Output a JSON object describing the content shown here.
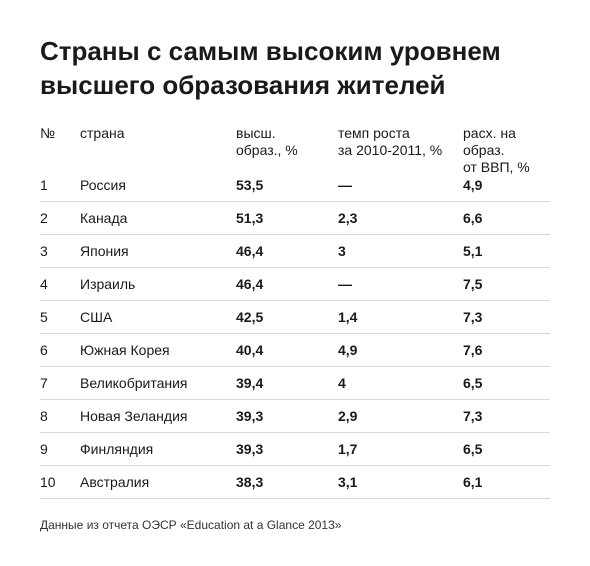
{
  "title": "Страны с самым высоким уровнем высшего образования жителей",
  "headers": {
    "no": "№",
    "country": "страна",
    "higher_ed_l1": "высш.",
    "higher_ed_l2": "образ., %",
    "growth_l1": "темп роста",
    "growth_l2": "за 2010-2011, %",
    "spend_l1": "расх. на образ.",
    "spend_l2": "от ВВП, %"
  },
  "rows": [
    {
      "no": "1",
      "country": "Россия",
      "higher_ed": "53,5",
      "growth": "—",
      "spend": "4,9"
    },
    {
      "no": "2",
      "country": "Канада",
      "higher_ed": "51,3",
      "growth": "2,3",
      "spend": "6,6"
    },
    {
      "no": "3",
      "country": "Япония",
      "higher_ed": "46,4",
      "growth": "3",
      "spend": "5,1"
    },
    {
      "no": "4",
      "country": "Израиль",
      "higher_ed": "46,4",
      "growth": "—",
      "spend": "7,5"
    },
    {
      "no": "5",
      "country": "США",
      "higher_ed": "42,5",
      "growth": "1,4",
      "spend": "7,3"
    },
    {
      "no": "6",
      "country": "Южная Корея",
      "higher_ed": "40,4",
      "growth": "4,9",
      "spend": "7,6"
    },
    {
      "no": "7",
      "country": "Великобритания",
      "higher_ed": "39,4",
      "growth": "4",
      "spend": "6,5"
    },
    {
      "no": "8",
      "country": "Новая Зеландия",
      "higher_ed": "39,3",
      "growth": "2,9",
      "spend": "7,3"
    },
    {
      "no": "9",
      "country": "Финляндия",
      "higher_ed": "39,3",
      "growth": "1,7",
      "spend": "6,5"
    },
    {
      "no": "10",
      "country": "Австралия",
      "higher_ed": "38,3",
      "growth": "3,1",
      "spend": "6,1"
    }
  ],
  "footnote": "Данные из отчета ОЭСР «Education at a Glance 2013»"
}
